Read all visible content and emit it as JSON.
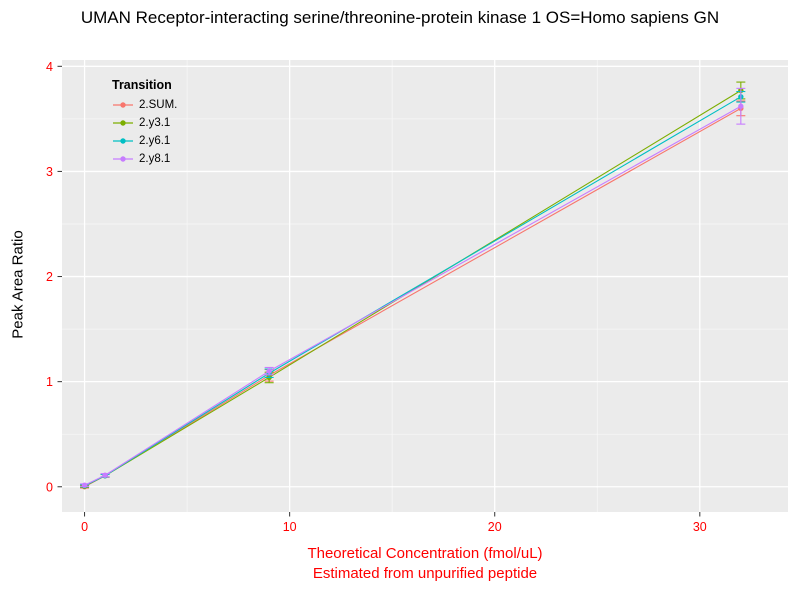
{
  "chart_data": {
    "type": "line",
    "title": "UMAN Receptor-interacting serine/threonine-protein kinase 1 OS=Homo sapiens GN",
    "ylabel": "Peak Area Ratio",
    "xlabel": "Theoretical Concentration (fmol/uL)",
    "xlabel2": "Estimated from unpurified peptide",
    "legend_title": "Transition",
    "legend_position": "top-left-inside",
    "grid": true,
    "x": [
      0,
      1,
      9,
      32
    ],
    "series": [
      {
        "name": "2.SUM.",
        "color": "#F8766D",
        "values": [
          0.0,
          0.105,
          1.06,
          3.6
        ],
        "errors": [
          0.012,
          0.015,
          0.055,
          0.07
        ]
      },
      {
        "name": "2.y3.1",
        "color": "#7CAE00",
        "values": [
          0.005,
          0.105,
          1.04,
          3.77
        ],
        "errors": [
          0.01,
          0.012,
          0.05,
          0.08
        ]
      },
      {
        "name": "2.y6.1",
        "color": "#00BFC4",
        "values": [
          0.01,
          0.105,
          1.08,
          3.71
        ],
        "errors": [
          0.01,
          0.012,
          0.04,
          0.05
        ]
      },
      {
        "name": "2.y8.1",
        "color": "#C77CFF",
        "values": [
          0.015,
          0.11,
          1.1,
          3.62
        ],
        "errors": [
          0.012,
          0.015,
          0.035,
          0.17
        ]
      }
    ],
    "x_ticks": [
      0,
      10,
      20,
      30
    ],
    "y_ticks": [
      0,
      1,
      2,
      3,
      4
    ],
    "x_minor": [
      5,
      15,
      25
    ],
    "y_minor": [
      0.5,
      1.5,
      2.5,
      3.5
    ],
    "xlim": [
      -1.1,
      34.3
    ],
    "ylim": [
      -0.24,
      4.06
    ],
    "colors": {
      "plot_background": "#EBEBEB",
      "grid_major": "#FFFFFF",
      "grid_minor": "#F7F7F7",
      "axis_text": "#FF0000",
      "x_label": "#FF0000",
      "y_label": "#000000",
      "title": "#000000",
      "tick_mark": "#333333"
    }
  }
}
